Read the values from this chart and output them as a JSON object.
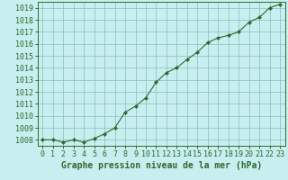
{
  "x": [
    0,
    1,
    2,
    3,
    4,
    5,
    6,
    7,
    8,
    9,
    10,
    11,
    12,
    13,
    14,
    15,
    16,
    17,
    18,
    19,
    20,
    21,
    22,
    23
  ],
  "y": [
    1008.0,
    1008.0,
    1007.8,
    1008.0,
    1007.8,
    1008.1,
    1008.5,
    1009.0,
    1010.3,
    1010.8,
    1011.5,
    1012.8,
    1013.6,
    1014.0,
    1014.7,
    1015.3,
    1016.1,
    1016.5,
    1016.7,
    1017.0,
    1017.8,
    1018.2,
    1019.0,
    1019.3
  ],
  "line_color": "#2d6a2d",
  "marker_color": "#2d6a2d",
  "bg_color": "#c8eef0",
  "grid_color": "#7fbfbf",
  "title": "Graphe pression niveau de la mer (hPa)",
  "ylim_min": 1007.5,
  "ylim_max": 1019.5,
  "xlim_min": -0.5,
  "xlim_max": 23.5,
  "yticks": [
    1008,
    1009,
    1010,
    1011,
    1012,
    1013,
    1014,
    1015,
    1016,
    1017,
    1018,
    1019
  ],
  "xtick_labels": [
    "0",
    "1",
    "2",
    "3",
    "4",
    "5",
    "6",
    "7",
    "8",
    "9",
    "10",
    "11",
    "12",
    "13",
    "14",
    "15",
    "16",
    "17",
    "18",
    "19",
    "20",
    "21",
    "22",
    "23"
  ],
  "tick_color": "#2d6a2d",
  "title_color": "#2d6a2d",
  "title_fontsize": 7.0,
  "tick_fontsize": 6.0
}
